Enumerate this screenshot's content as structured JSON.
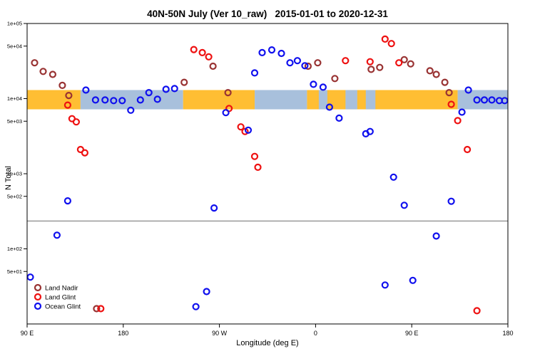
{
  "title": "40N-50N July (Ver 10_raw)   2015-01-01 to 2020-12-31",
  "chart_data": {
    "type": "scatter",
    "title": "40N-50N July (Ver 10_raw)   2015-01-01 to 2020-12-31",
    "xlabel": "Longitude (deg E)",
    "ylabel": "N Total",
    "x_axis": {
      "min": 90,
      "max": 540,
      "ticks": [
        {
          "value": 90,
          "label": "90 E"
        },
        {
          "value": 180,
          "label": "180"
        },
        {
          "value": 270,
          "label": "90 W"
        },
        {
          "value": 360,
          "label": "0"
        },
        {
          "value": 450,
          "label": "90 E"
        },
        {
          "value": 540,
          "label": "180"
        }
      ]
    },
    "y_axis": {
      "scale": "log",
      "min": 10,
      "max": 100000,
      "ticks": [
        {
          "value": 100000,
          "label": "1e+05"
        },
        {
          "value": 50000,
          "label": "5e+04"
        },
        {
          "value": 10000,
          "label": "1e+04"
        },
        {
          "value": 5000,
          "label": "5e+03"
        },
        {
          "value": 1000,
          "label": "1e+03"
        },
        {
          "value": 500,
          "label": "5e+02"
        },
        {
          "value": 100,
          "label": "1e+02"
        },
        {
          "value": 50,
          "label": "5e+01"
        }
      ]
    },
    "reference_line": {
      "y": 235,
      "color": "#6E6E6E"
    },
    "land_ocean_band": {
      "y_top": 13000,
      "y_bottom": 7200,
      "land_color": "#FFBE33",
      "ocean_color": "#A8C0DC",
      "segments": [
        {
          "type": "land",
          "from": 90,
          "to": 140
        },
        {
          "type": "ocean",
          "from": 140,
          "to": 236
        },
        {
          "type": "land",
          "from": 236,
          "to": 303
        },
        {
          "type": "ocean",
          "from": 303,
          "to": 352
        },
        {
          "type": "land",
          "from": 352,
          "to": 493
        },
        {
          "type": "ocean",
          "from": 493,
          "to": 540
        },
        {
          "type": "ocean",
          "from": 363,
          "to": 371
        },
        {
          "type": "ocean",
          "from": 388,
          "to": 399
        },
        {
          "type": "ocean",
          "from": 407,
          "to": 416
        }
      ]
    },
    "legend": {
      "position": "bottom-left",
      "items": [
        "Land Nadir",
        "Land Glint",
        "Ocean Glint"
      ]
    },
    "series": [
      {
        "name": "Land Nadir",
        "color": "#993333",
        "marker": "open-circle",
        "points": [
          [
            97,
            30000
          ],
          [
            105,
            23000
          ],
          [
            114,
            21000
          ],
          [
            123,
            15000
          ],
          [
            129,
            11000
          ],
          [
            237,
            16500
          ],
          [
            264,
            27000
          ],
          [
            278,
            12000
          ],
          [
            353,
            27000
          ],
          [
            362,
            30000
          ],
          [
            378,
            18500
          ],
          [
            412,
            24500
          ],
          [
            420,
            26000
          ],
          [
            443,
            33000
          ],
          [
            449,
            29000
          ],
          [
            467,
            23500
          ],
          [
            473,
            21000
          ],
          [
            481,
            16500
          ],
          [
            485,
            12000
          ],
          [
            155,
            16
          ]
        ]
      },
      {
        "name": "Land Glint",
        "color": "#EE1111",
        "marker": "open-circle",
        "points": [
          [
            128,
            8200
          ],
          [
            132,
            5400
          ],
          [
            136,
            4900
          ],
          [
            140,
            2100
          ],
          [
            144,
            1900
          ],
          [
            246,
            45000
          ],
          [
            254,
            41000
          ],
          [
            260,
            36000
          ],
          [
            279,
            7400
          ],
          [
            290,
            4200
          ],
          [
            294,
            3650
          ],
          [
            303,
            1700
          ],
          [
            306,
            1220
          ],
          [
            388,
            32000
          ],
          [
            411,
            31000
          ],
          [
            425,
            62000
          ],
          [
            431,
            54000
          ],
          [
            438,
            30000
          ],
          [
            487,
            8400
          ],
          [
            493,
            5100
          ],
          [
            502,
            2100
          ],
          [
            511,
            15
          ],
          [
            159,
            16
          ]
        ]
      },
      {
        "name": "Ocean Glint",
        "color": "#1010EE",
        "marker": "open-circle",
        "points": [
          [
            145,
            13000
          ],
          [
            154,
            9600
          ],
          [
            163,
            9600
          ],
          [
            171,
            9400
          ],
          [
            179,
            9400
          ],
          [
            187,
            7000
          ],
          [
            196,
            9600
          ],
          [
            204,
            12000
          ],
          [
            212,
            9800
          ],
          [
            220,
            13300
          ],
          [
            228,
            13600
          ],
          [
            265,
            350
          ],
          [
            248,
            17
          ],
          [
            258,
            27
          ],
          [
            276,
            6500
          ],
          [
            297,
            3800
          ],
          [
            303,
            22000
          ],
          [
            310,
            41000
          ],
          [
            319,
            44500
          ],
          [
            328,
            40000
          ],
          [
            336,
            30000
          ],
          [
            343,
            32000
          ],
          [
            350,
            27400
          ],
          [
            358,
            15500
          ],
          [
            367,
            14200
          ],
          [
            373,
            7700
          ],
          [
            382,
            5500
          ],
          [
            407,
            3400
          ],
          [
            411,
            3650
          ],
          [
            433,
            900
          ],
          [
            443,
            380
          ],
          [
            425,
            33
          ],
          [
            451,
            38
          ],
          [
            473,
            148
          ],
          [
            487,
            430
          ],
          [
            93,
            42
          ],
          [
            118,
            152
          ],
          [
            128,
            435
          ],
          [
            497,
            6600
          ],
          [
            503,
            13000
          ],
          [
            511,
            9600
          ],
          [
            518,
            9600
          ],
          [
            525,
            9600
          ],
          [
            532,
            9400
          ],
          [
            537,
            9400
          ]
        ]
      }
    ]
  }
}
